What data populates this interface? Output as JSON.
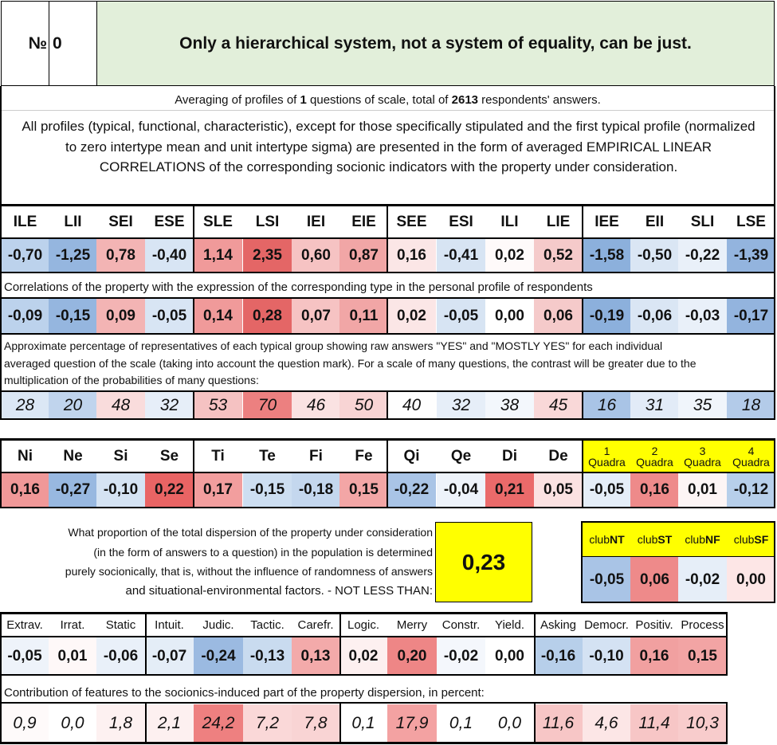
{
  "header": {
    "number_label": "№",
    "number_value": "0",
    "title": "Only a hierarchical system, not a system of equality, can be just."
  },
  "summary": {
    "prefix": "Averaging of profiles of ",
    "questions": "1",
    "middle": " questions of scale, total of ",
    "respondents": "2613",
    "suffix": " respondents' answers.",
    "description": "All profiles (typical, functional, characteristic), except for those specifically stipulated and the first typical profile (normalized to zero intertype mean and unit intertype sigma) are presented in the form of averaged EMPIRICAL LINEAR CORRELATIONS of the corresponding socionic indicators with the property under consideration."
  },
  "types": {
    "labels": [
      "ILE",
      "LII",
      "SEI",
      "ESE",
      "SLE",
      "LSI",
      "IEI",
      "EIE",
      "SEE",
      "ESI",
      "ILI",
      "LIE",
      "IEE",
      "EII",
      "SLI",
      "LSE"
    ],
    "profile": [
      "-0,70",
      "-1,25",
      "0,78",
      "-0,40",
      "1,14",
      "2,35",
      "0,60",
      "0,87",
      "0,16",
      "-0,41",
      "0,02",
      "0,52",
      "-1,58",
      "-0,50",
      "-0,22",
      "-1,39"
    ],
    "profile_colors": [
      "#bcd2ec",
      "#95b6df",
      "#f3b4b4",
      "#d8e5f4",
      "#f09a9a",
      "#e46666",
      "#f6c3c3",
      "#f1a6a6",
      "#fbe6e6",
      "#d7e4f3",
      "#fefafa",
      "#f5caca",
      "#8cb0dc",
      "#dae6f4",
      "#e9f0f9",
      "#93b4de"
    ],
    "corr_caption": "Correlations of the property with the expression of the corresponding type in the personal profile of respondents",
    "correlations": [
      "-0,09",
      "-0,15",
      "0,09",
      "-0,05",
      "0,14",
      "0,28",
      "0,07",
      "0,11",
      "0,02",
      "-0,05",
      "0,00",
      "0,06",
      "-0,19",
      "-0,06",
      "-0,03",
      "-0,17"
    ],
    "corr_colors": [
      "#bcd2ec",
      "#95b6df",
      "#f3b4b4",
      "#d8e5f4",
      "#f09a9a",
      "#e46666",
      "#f6c3c3",
      "#f1a6a6",
      "#fbe6e6",
      "#d7e4f3",
      "#ffffff",
      "#f5caca",
      "#8cb0dc",
      "#dae6f4",
      "#e9f0f9",
      "#93b4de"
    ],
    "pct_caption_1": "Approximate percentage of representatives of each typical group showing raw answers \"YES\" and \"MOSTLY YES\" for each individual",
    "pct_caption_2": "averaged question of the scale (taking into account the question mark). For a scale of many questions, the contrast will be greater due to the",
    "pct_caption_3": "multiplication of the probabilities of many questions:",
    "percentages": [
      "28",
      "20",
      "48",
      "32",
      "53",
      "70",
      "46",
      "50",
      "40",
      "32",
      "38",
      "45",
      "16",
      "31",
      "35",
      "18"
    ],
    "pct_colors": [
      "#dbe7f5",
      "#c0d4ed",
      "#f9dcdc",
      "#e6eef8",
      "#f5c2c2",
      "#ec8080",
      "#fae2e2",
      "#f8d4d4",
      "#fefefe",
      "#e6eef8",
      "#f3f7fc",
      "#f9d8d8",
      "#a9c4e6",
      "#e2ebf7",
      "#f0f5fb",
      "#b3cbe9"
    ]
  },
  "functions": {
    "labels": [
      "Ni",
      "Ne",
      "Si",
      "Se",
      "Ti",
      "Te",
      "Fi",
      "Fe",
      "Qi",
      "Qe",
      "Di",
      "De"
    ],
    "values": [
      "0,16",
      "-0,27",
      "-0,10",
      "0,22",
      "0,17",
      "-0,15",
      "-0,18",
      "0,15",
      "-0,22",
      "-0,04",
      "0,21",
      "0,05"
    ],
    "colors": [
      "#f09898",
      "#98b8e0",
      "#d5e3f3",
      "#e96464",
      "#f29e9e",
      "#cddef1",
      "#c4d7ee",
      "#f3a6a6",
      "#a9c4e6",
      "#eef3fa",
      "#ea6a6a",
      "#fbe2e2"
    ]
  },
  "quadras": {
    "labels": [
      [
        "1",
        "Quadra"
      ],
      [
        "2",
        "Quadra"
      ],
      [
        "3",
        "Quadra"
      ],
      [
        "4",
        "Quadra"
      ]
    ],
    "values": [
      "-0,05",
      "0,16",
      "0,01",
      "-0,12"
    ],
    "colors": [
      "#e5eef8",
      "#ee8a8a",
      "#fdf5f5",
      "#b7cfea"
    ]
  },
  "dispersion": {
    "line1": "What proportion of the total dispersion of the property under consideration",
    "line2": "(in the form of answers to a question) in the population is determined",
    "line3": "purely socionically, that is, without the influence of randomness of answers",
    "line4": "and situational-environmental factors. - NOT LESS THAN:",
    "value": "0,23"
  },
  "clubs": {
    "labels": [
      [
        "club",
        "NT"
      ],
      [
        "club",
        "ST"
      ],
      [
        "club",
        "NF"
      ],
      [
        "club",
        "SF"
      ]
    ],
    "values": [
      "-0,05",
      "0,06",
      "-0,02",
      "0,00"
    ],
    "colors": [
      "#a9c4e6",
      "#ee8a8a",
      "#e6eef8",
      "#fde6e6"
    ]
  },
  "features": {
    "labels": [
      "Extrav.",
      "Irrat.",
      "Static",
      "Intuit.",
      "Judic.",
      "Tactic.",
      "Carefr.",
      "Logic.",
      "Merry",
      "Constr.",
      "Yield.",
      "Asking",
      "Democr.",
      "Positiv.",
      "Process"
    ],
    "values": [
      "-0,05",
      "0,01",
      "-0,06",
      "-0,07",
      "-0,24",
      "-0,13",
      "0,13",
      "0,02",
      "0,20",
      "-0,02",
      "0,00",
      "-0,16",
      "-0,10",
      "0,16",
      "0,15"
    ],
    "colors": [
      "#eef3fa",
      "#fef8f8",
      "#e9f0f9",
      "#e4edf7",
      "#9bbae1",
      "#c9dbef",
      "#f3aaaa",
      "#fdf0f0",
      "#ee8686",
      "#f4f7fc",
      "#ffffff",
      "#b7cfea",
      "#d4e2f3",
      "#f1a0a0",
      "#f2a4a4"
    ],
    "contrib_caption": "Contribution of features to the socionics-induced part of the property dispersion, in percent:",
    "contributions": [
      "0,9",
      "0,0",
      "1,8",
      "2,1",
      "24,2",
      "7,2",
      "7,8",
      "0,1",
      "17,9",
      "0,1",
      "0,0",
      "11,6",
      "4,6",
      "11,4",
      "10,3"
    ],
    "contrib_colors": [
      "#fefafa",
      "#ffffff",
      "#fdf1f1",
      "#fdf0f0",
      "#ee8080",
      "#fad8d8",
      "#f9d4d4",
      "#ffffff",
      "#f3a2a2",
      "#ffffff",
      "#ffffff",
      "#f7c6c6",
      "#fce6e6",
      "#f7c6c6",
      "#f8cccc"
    ]
  },
  "colors": {
    "title_bg": "#e2efda",
    "highlight_yellow": "#ffff00"
  }
}
